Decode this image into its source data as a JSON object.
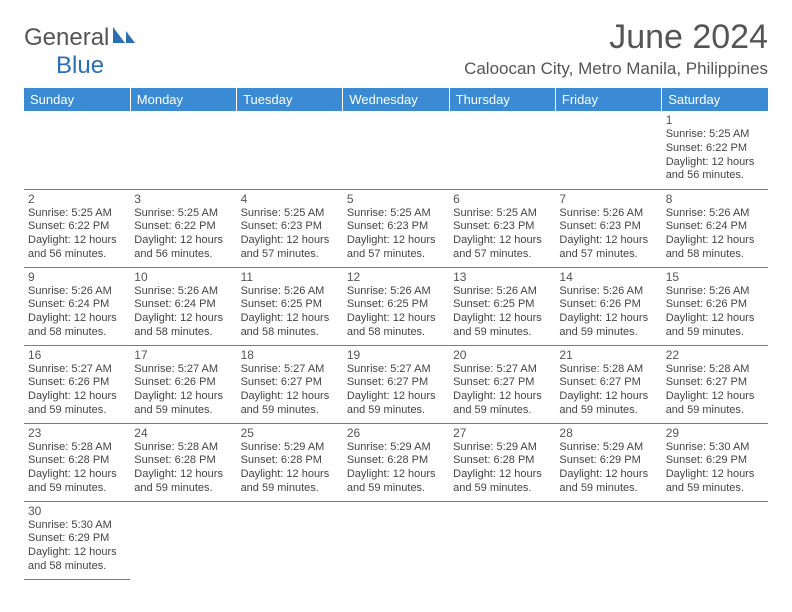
{
  "brand": {
    "name_a": "General",
    "name_b": "Blue"
  },
  "title": "June 2024",
  "location": "Caloocan City, Metro Manila, Philippines",
  "colors": {
    "header_bg": "#3b8bd4",
    "header_text": "#ffffff",
    "border": "#3b8bd4",
    "text": "#444444",
    "title_text": "#555555"
  },
  "font": {
    "family": "Arial",
    "day_label_size": 13,
    "cell_size": 11,
    "title_size": 34
  },
  "days_of_week": [
    "Sunday",
    "Monday",
    "Tuesday",
    "Wednesday",
    "Thursday",
    "Friday",
    "Saturday"
  ],
  "weeks": [
    [
      null,
      null,
      null,
      null,
      null,
      null,
      {
        "n": "1",
        "sr": "5:25 AM",
        "ss": "6:22 PM",
        "dl1": "12 hours",
        "dl2": "and 56 minutes."
      }
    ],
    [
      {
        "n": "2",
        "sr": "5:25 AM",
        "ss": "6:22 PM",
        "dl1": "12 hours",
        "dl2": "and 56 minutes."
      },
      {
        "n": "3",
        "sr": "5:25 AM",
        "ss": "6:22 PM",
        "dl1": "12 hours",
        "dl2": "and 56 minutes."
      },
      {
        "n": "4",
        "sr": "5:25 AM",
        "ss": "6:23 PM",
        "dl1": "12 hours",
        "dl2": "and 57 minutes."
      },
      {
        "n": "5",
        "sr": "5:25 AM",
        "ss": "6:23 PM",
        "dl1": "12 hours",
        "dl2": "and 57 minutes."
      },
      {
        "n": "6",
        "sr": "5:25 AM",
        "ss": "6:23 PM",
        "dl1": "12 hours",
        "dl2": "and 57 minutes."
      },
      {
        "n": "7",
        "sr": "5:26 AM",
        "ss": "6:23 PM",
        "dl1": "12 hours",
        "dl2": "and 57 minutes."
      },
      {
        "n": "8",
        "sr": "5:26 AM",
        "ss": "6:24 PM",
        "dl1": "12 hours",
        "dl2": "and 58 minutes."
      }
    ],
    [
      {
        "n": "9",
        "sr": "5:26 AM",
        "ss": "6:24 PM",
        "dl1": "12 hours",
        "dl2": "and 58 minutes."
      },
      {
        "n": "10",
        "sr": "5:26 AM",
        "ss": "6:24 PM",
        "dl1": "12 hours",
        "dl2": "and 58 minutes."
      },
      {
        "n": "11",
        "sr": "5:26 AM",
        "ss": "6:25 PM",
        "dl1": "12 hours",
        "dl2": "and 58 minutes."
      },
      {
        "n": "12",
        "sr": "5:26 AM",
        "ss": "6:25 PM",
        "dl1": "12 hours",
        "dl2": "and 58 minutes."
      },
      {
        "n": "13",
        "sr": "5:26 AM",
        "ss": "6:25 PM",
        "dl1": "12 hours",
        "dl2": "and 59 minutes."
      },
      {
        "n": "14",
        "sr": "5:26 AM",
        "ss": "6:26 PM",
        "dl1": "12 hours",
        "dl2": "and 59 minutes."
      },
      {
        "n": "15",
        "sr": "5:26 AM",
        "ss": "6:26 PM",
        "dl1": "12 hours",
        "dl2": "and 59 minutes."
      }
    ],
    [
      {
        "n": "16",
        "sr": "5:27 AM",
        "ss": "6:26 PM",
        "dl1": "12 hours",
        "dl2": "and 59 minutes."
      },
      {
        "n": "17",
        "sr": "5:27 AM",
        "ss": "6:26 PM",
        "dl1": "12 hours",
        "dl2": "and 59 minutes."
      },
      {
        "n": "18",
        "sr": "5:27 AM",
        "ss": "6:27 PM",
        "dl1": "12 hours",
        "dl2": "and 59 minutes."
      },
      {
        "n": "19",
        "sr": "5:27 AM",
        "ss": "6:27 PM",
        "dl1": "12 hours",
        "dl2": "and 59 minutes."
      },
      {
        "n": "20",
        "sr": "5:27 AM",
        "ss": "6:27 PM",
        "dl1": "12 hours",
        "dl2": "and 59 minutes."
      },
      {
        "n": "21",
        "sr": "5:28 AM",
        "ss": "6:27 PM",
        "dl1": "12 hours",
        "dl2": "and 59 minutes."
      },
      {
        "n": "22",
        "sr": "5:28 AM",
        "ss": "6:27 PM",
        "dl1": "12 hours",
        "dl2": "and 59 minutes."
      }
    ],
    [
      {
        "n": "23",
        "sr": "5:28 AM",
        "ss": "6:28 PM",
        "dl1": "12 hours",
        "dl2": "and 59 minutes."
      },
      {
        "n": "24",
        "sr": "5:28 AM",
        "ss": "6:28 PM",
        "dl1": "12 hours",
        "dl2": "and 59 minutes."
      },
      {
        "n": "25",
        "sr": "5:29 AM",
        "ss": "6:28 PM",
        "dl1": "12 hours",
        "dl2": "and 59 minutes."
      },
      {
        "n": "26",
        "sr": "5:29 AM",
        "ss": "6:28 PM",
        "dl1": "12 hours",
        "dl2": "and 59 minutes."
      },
      {
        "n": "27",
        "sr": "5:29 AM",
        "ss": "6:28 PM",
        "dl1": "12 hours",
        "dl2": "and 59 minutes."
      },
      {
        "n": "28",
        "sr": "5:29 AM",
        "ss": "6:29 PM",
        "dl1": "12 hours",
        "dl2": "and 59 minutes."
      },
      {
        "n": "29",
        "sr": "5:30 AM",
        "ss": "6:29 PM",
        "dl1": "12 hours",
        "dl2": "and 59 minutes."
      }
    ],
    [
      {
        "n": "30",
        "sr": "5:30 AM",
        "ss": "6:29 PM",
        "dl1": "12 hours",
        "dl2": "and 58 minutes."
      },
      null,
      null,
      null,
      null,
      null,
      null
    ]
  ],
  "labels": {
    "sunrise": "Sunrise:",
    "sunset": "Sunset:",
    "daylight": "Daylight:"
  }
}
